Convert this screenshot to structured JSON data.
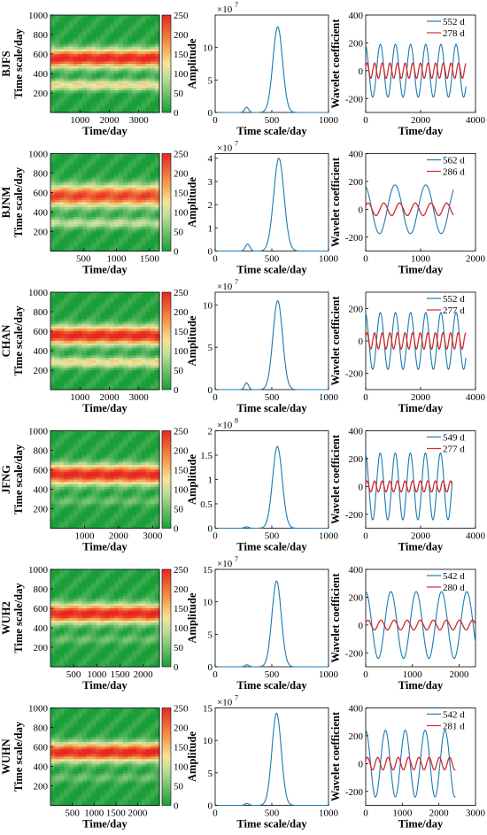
{
  "colors": {
    "spectrum_line": "#1a7ab3",
    "series_long": "#1a7ab3",
    "series_short": "#d42a2a",
    "heat_low": "#1a9e3a",
    "heat_mid": "#f5e49a",
    "heat_high": "#e8271f"
  },
  "chart_data": [
    {
      "station": "BJFS",
      "panels": [
        {
          "type": "heatmap",
          "ylabel": "Time scale/day",
          "xlabel": "Time/day",
          "xticks": [
            "1000",
            "2000",
            "3000"
          ],
          "yticks": [
            "200",
            "400",
            "600",
            "800",
            "1000"
          ],
          "xlim": [
            0,
            3700
          ],
          "ylim": [
            0,
            1000
          ],
          "colorbar_ticks": [
            "0",
            "50",
            "100",
            "150",
            "200",
            "250"
          ],
          "bands": [
            {
              "center": 555,
              "intensity": 1.0,
              "width": 95
            },
            {
              "center": 280,
              "intensity": 0.5,
              "width": 55
            }
          ]
        },
        {
          "type": "line",
          "xlabel": "Time scale/day",
          "ylabel": "Amplitude",
          "multiplier": "×10",
          "multiplier_exp": "7",
          "yticks": [
            "0",
            "5",
            "10"
          ],
          "xticks": [
            "0",
            "500",
            "1000"
          ],
          "xlim": [
            0,
            1000
          ],
          "ylim": [
            0,
            15
          ],
          "peaks": [
            {
              "x": 552,
              "y": 13.2,
              "w": 60
            },
            {
              "x": 278,
              "y": 0.8,
              "w": 25
            }
          ]
        },
        {
          "type": "line",
          "xlabel": "Time/day",
          "ylabel": "Wavelet coefficient",
          "yticks": [
            "-200",
            "0",
            "200",
            "400"
          ],
          "xticks": [
            "0",
            "2000",
            "4000"
          ],
          "xlim": [
            0,
            4000
          ],
          "ylim": [
            -300,
            400
          ],
          "t_end": 3650,
          "series": [
            {
              "name": "552 d",
              "period": 552,
              "amplitude": 190,
              "phase": 1.8
            },
            {
              "name": "278 d",
              "period": 278,
              "amplitude": 55,
              "phase": 0.5
            }
          ]
        }
      ]
    },
    {
      "station": "BJNM",
      "panels": [
        {
          "type": "heatmap",
          "ylabel": "Time scale/day",
          "xlabel": "Time/day",
          "xticks": [
            "500",
            "1000",
            "1500"
          ],
          "yticks": [
            "200",
            "400",
            "600",
            "800",
            "1000"
          ],
          "xlim": [
            0,
            1650
          ],
          "ylim": [
            0,
            1000
          ],
          "colorbar_ticks": [
            "0",
            "50",
            "100",
            "150",
            "200",
            "250"
          ],
          "bands": [
            {
              "center": 565,
              "intensity": 0.9,
              "width": 110
            },
            {
              "center": 285,
              "intensity": 0.35,
              "width": 55
            }
          ]
        },
        {
          "type": "line",
          "xlabel": "Time scale/day",
          "ylabel": "Amplitude",
          "multiplier": "×10",
          "multiplier_exp": "7",
          "yticks": [
            "0",
            "1",
            "2",
            "3",
            "4"
          ],
          "xticks": [
            "0",
            "500",
            "1000"
          ],
          "xlim": [
            0,
            1000
          ],
          "ylim": [
            0,
            4.2
          ],
          "peaks": [
            {
              "x": 562,
              "y": 4.0,
              "w": 65
            },
            {
              "x": 286,
              "y": 0.3,
              "w": 28
            }
          ]
        },
        {
          "type": "line",
          "xlabel": "Time/day",
          "ylabel": "Wavelet coefficient",
          "yticks": [
            "-200",
            "0",
            "200",
            "400"
          ],
          "xticks": [
            "0",
            "1000",
            "2000"
          ],
          "xlim": [
            0,
            2000
          ],
          "ylim": [
            -300,
            400
          ],
          "t_end": 1600,
          "series": [
            {
              "name": "562 d",
              "period": 562,
              "amplitude": 175,
              "phase": 1.9
            },
            {
              "name": "286 d",
              "period": 286,
              "amplitude": 45,
              "phase": 0.6
            }
          ]
        }
      ]
    },
    {
      "station": "CHAN",
      "panels": [
        {
          "type": "heatmap",
          "ylabel": "Time scale/day",
          "xlabel": "Time/day",
          "xticks": [
            "1000",
            "2000",
            "3000"
          ],
          "yticks": [
            "200",
            "400",
            "600",
            "800",
            "1000"
          ],
          "xlim": [
            0,
            3700
          ],
          "ylim": [
            0,
            1000
          ],
          "colorbar_ticks": [
            "0",
            "50",
            "100",
            "150",
            "200",
            "250"
          ],
          "bands": [
            {
              "center": 555,
              "intensity": 1.0,
              "width": 95
            },
            {
              "center": 280,
              "intensity": 0.5,
              "width": 55
            }
          ]
        },
        {
          "type": "line",
          "xlabel": "Time scale/day",
          "ylabel": "Amplitude",
          "multiplier": "×10",
          "multiplier_exp": "7",
          "yticks": [
            "0",
            "5",
            "10"
          ],
          "xticks": [
            "0",
            "500",
            "1000"
          ],
          "xlim": [
            0,
            1000
          ],
          "ylim": [
            0,
            11.5
          ],
          "peaks": [
            {
              "x": 552,
              "y": 10.5,
              "w": 60
            },
            {
              "x": 277,
              "y": 0.8,
              "w": 25
            }
          ]
        },
        {
          "type": "line",
          "xlabel": "Time/day",
          "ylabel": "Wavelet coefficient",
          "yticks": [
            "-200",
            "0",
            "200"
          ],
          "xticks": [
            "0",
            "2000",
            "4000"
          ],
          "xlim": [
            0,
            4000
          ],
          "ylim": [
            -300,
            300
          ],
          "t_end": 3650,
          "series": [
            {
              "name": "552 d",
              "period": 552,
              "amplitude": 175,
              "phase": 1.8
            },
            {
              "name": "277 d",
              "period": 277,
              "amplitude": 50,
              "phase": 0.5
            }
          ]
        }
      ]
    },
    {
      "station": "JFNG",
      "panels": [
        {
          "type": "heatmap",
          "ylabel": "Time scale/day",
          "xlabel": "Time/day",
          "xticks": [
            "1000",
            "2000",
            "3000"
          ],
          "yticks": [
            "200",
            "400",
            "600",
            "800",
            "1000"
          ],
          "xlim": [
            0,
            3200
          ],
          "ylim": [
            0,
            1000
          ],
          "colorbar_ticks": [
            "0",
            "50",
            "100",
            "150",
            "200",
            "250"
          ],
          "bands": [
            {
              "center": 550,
              "intensity": 1.0,
              "width": 100
            },
            {
              "center": 277,
              "intensity": 0.15,
              "width": 50
            }
          ]
        },
        {
          "type": "line",
          "xlabel": "Time scale/day",
          "ylabel": "Amplitude",
          "multiplier": "×10",
          "multiplier_exp": "8",
          "yticks": [
            "0",
            "0.5",
            "1",
            "1.5",
            "2"
          ],
          "xticks": [
            "0",
            "500",
            "1000"
          ],
          "xlim": [
            0,
            1000
          ],
          "ylim": [
            0,
            2
          ],
          "peaks": [
            {
              "x": 549,
              "y": 1.68,
              "w": 60
            },
            {
              "x": 277,
              "y": 0.03,
              "w": 25
            }
          ]
        },
        {
          "type": "line",
          "xlabel": "Time/day",
          "ylabel": "Wavelet coefficient",
          "yticks": [
            "-200",
            "0",
            "200",
            "400"
          ],
          "xticks": [
            "0",
            "2000",
            "4000"
          ],
          "xlim": [
            0,
            4000
          ],
          "ylim": [
            -300,
            400
          ],
          "t_end": 3150,
          "series": [
            {
              "name": "549 d",
              "period": 549,
              "amplitude": 240,
              "phase": 1.8
            },
            {
              "name": "277 d",
              "period": 277,
              "amplitude": 40,
              "phase": 0.5
            }
          ]
        }
      ]
    },
    {
      "station": "WUH2",
      "panels": [
        {
          "type": "heatmap",
          "ylabel": "Time scale/day",
          "xlabel": "Time/day",
          "xticks": [
            "500",
            "1000",
            "1500",
            "2000"
          ],
          "yticks": [
            "200",
            "400",
            "600",
            "800",
            "1000"
          ],
          "xlim": [
            0,
            2350
          ],
          "ylim": [
            0,
            1000
          ],
          "colorbar_ticks": [
            "0",
            "50",
            "100",
            "150",
            "200",
            "250"
          ],
          "bands": [
            {
              "center": 545,
              "intensity": 1.0,
              "width": 95
            },
            {
              "center": 280,
              "intensity": 0.15,
              "width": 50
            }
          ]
        },
        {
          "type": "line",
          "xlabel": "Time scale/day",
          "ylabel": "Amplitude",
          "multiplier": "×10",
          "multiplier_exp": "7",
          "yticks": [
            "0",
            "5",
            "10",
            "15"
          ],
          "xticks": [
            "0",
            "500",
            "1000"
          ],
          "xlim": [
            0,
            1000
          ],
          "ylim": [
            0,
            15
          ],
          "peaks": [
            {
              "x": 542,
              "y": 13.2,
              "w": 58
            },
            {
              "x": 280,
              "y": 0.3,
              "w": 25
            }
          ]
        },
        {
          "type": "line",
          "xlabel": "Time/day",
          "ylabel": "Wavelet coefficient",
          "yticks": [
            "-200",
            "0",
            "200",
            "400"
          ],
          "xticks": [
            "0",
            "1000",
            "2000"
          ],
          "xlim": [
            0,
            2350
          ],
          "ylim": [
            -300,
            400
          ],
          "t_end": 2350,
          "series": [
            {
              "name": "542 d",
              "period": 542,
              "amplitude": 240,
              "phase": 1.6
            },
            {
              "name": "280 d",
              "period": 280,
              "amplitude": 35,
              "phase": 0.5
            }
          ]
        }
      ]
    },
    {
      "station": "WUHN",
      "panels": [
        {
          "type": "heatmap",
          "ylabel": "Time scale/day",
          "xlabel": "Time/day",
          "xticks": [
            "500",
            "1000",
            "1500",
            "2000"
          ],
          "yticks": [
            "200",
            "400",
            "600",
            "800",
            "1000"
          ],
          "xlim": [
            0,
            2500
          ],
          "ylim": [
            0,
            1000
          ],
          "colorbar_ticks": [
            "0",
            "50",
            "100",
            "150",
            "200",
            "250"
          ],
          "bands": [
            {
              "center": 545,
              "intensity": 1.0,
              "width": 95
            },
            {
              "center": 281,
              "intensity": 0.15,
              "width": 50
            }
          ]
        },
        {
          "type": "line",
          "xlabel": "Time scale/day",
          "ylabel": "Amplitude",
          "multiplier": "×10",
          "multiplier_exp": "7",
          "yticks": [
            "0",
            "5",
            "10",
            "15"
          ],
          "xticks": [
            "0",
            "500",
            "1000"
          ],
          "xlim": [
            0,
            1000
          ],
          "ylim": [
            0,
            15
          ],
          "peaks": [
            {
              "x": 542,
              "y": 14.2,
              "w": 58
            },
            {
              "x": 281,
              "y": 0.3,
              "w": 25
            }
          ]
        },
        {
          "type": "line",
          "xlabel": "Time/day",
          "ylabel": "Wavelet coefficient",
          "yticks": [
            "-200",
            "0",
            "200",
            "400"
          ],
          "xticks": [
            "0",
            "1000",
            "2000",
            "3000"
          ],
          "xlim": [
            0,
            3000
          ],
          "ylim": [
            -300,
            400
          ],
          "t_end": 2450,
          "series": [
            {
              "name": "542 d",
              "period": 542,
              "amplitude": 240,
              "phase": 1.6
            },
            {
              "name": "281 d",
              "period": 281,
              "amplitude": 45,
              "phase": 0.5
            }
          ]
        }
      ]
    }
  ]
}
